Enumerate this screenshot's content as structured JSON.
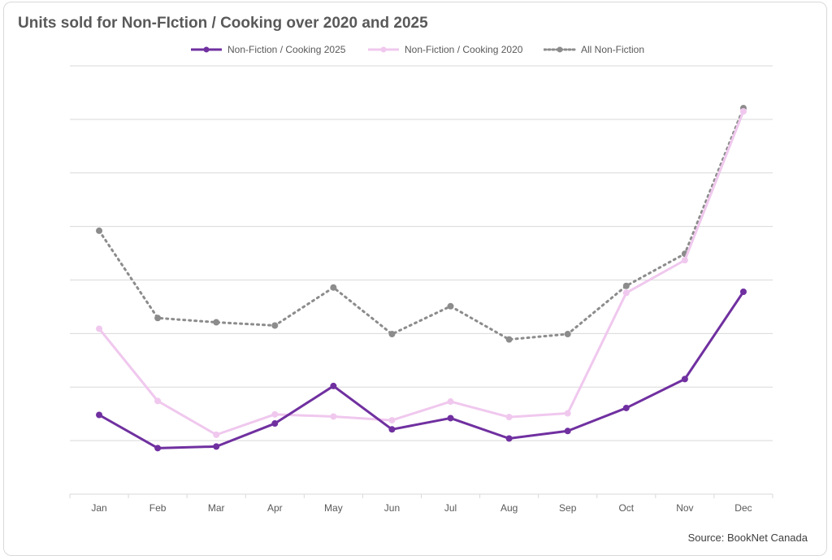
{
  "title": "Units sold for Non-FIction / Cooking  over 2020 and 2025",
  "source": "Source: BookNet Canada",
  "colors": {
    "series_2025": "#7030a0",
    "series_2020": "#f0c8ee",
    "all_nonfiction": "#8c8c8c",
    "grid": "#d9d9d9"
  },
  "chart_data": {
    "type": "line",
    "title": "Units sold for Non-FIction / Cooking  over 2020 and 2025",
    "categories": [
      "Jan",
      "Feb",
      "Mar",
      "Apr",
      "May",
      "Jun",
      "Jul",
      "Aug",
      "Sep",
      "Oct",
      "Nov",
      "Dec"
    ],
    "ylim": [
      0,
      8
    ],
    "grid": true,
    "y_tick_labels": false,
    "legend_position": "top",
    "series": [
      {
        "name": "Non-Fiction / Cooking 2025",
        "style": "solid",
        "values": [
          1.48,
          0.86,
          0.89,
          1.32,
          2.02,
          1.21,
          1.42,
          1.04,
          1.18,
          1.61,
          2.15,
          3.78
        ]
      },
      {
        "name": "Non-Fiction / Cooking 2020",
        "style": "solid",
        "values": [
          3.09,
          1.74,
          1.11,
          1.49,
          1.45,
          1.38,
          1.73,
          1.44,
          1.51,
          3.76,
          4.37,
          7.15
        ]
      },
      {
        "name": "All Non-Fiction",
        "style": "dotted",
        "values": [
          4.92,
          3.29,
          3.21,
          3.15,
          3.86,
          2.99,
          3.51,
          2.89,
          2.99,
          3.89,
          4.49,
          7.21
        ]
      }
    ]
  }
}
